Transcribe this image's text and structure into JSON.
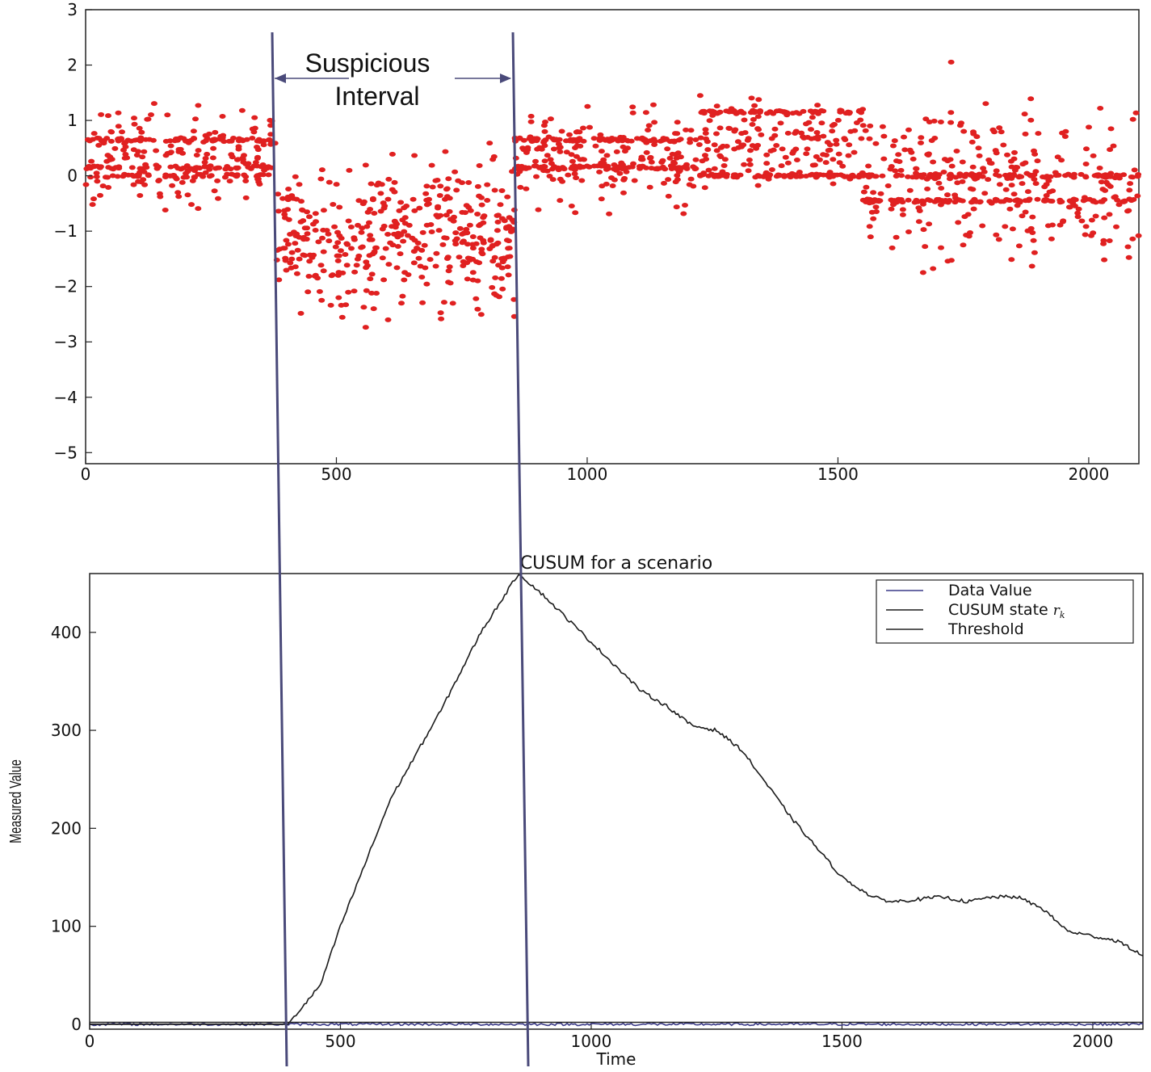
{
  "colors": {
    "scatter": "#e02020",
    "marker_line": "#4a4a7a",
    "cusum_line": "#1a1a1a",
    "data_line": "#3a3a88",
    "threshold_line": "#222222"
  },
  "annotation": {
    "line1": "Suspicious",
    "line2": "Interval",
    "markers_time": [
      380,
      855
    ]
  },
  "chart_data": [
    {
      "type": "scatter",
      "xlim": [
        0,
        2100
      ],
      "ylim": [
        -5.2,
        3
      ],
      "xticks": [
        0,
        500,
        1000,
        1500,
        2000
      ],
      "yticks": [
        3,
        2,
        1,
        0,
        -1,
        -2,
        -3,
        -4,
        -5
      ],
      "ytick_labels": [
        "3",
        "2",
        "1",
        "0",
        "−1",
        "−2",
        "−3",
        "−4",
        "−5"
      ],
      "segments": [
        {
          "x_start": 0,
          "x_end": 380,
          "bands": [
            0.65,
            0.15,
            0.0
          ],
          "spread": 0.65,
          "center": 0.35
        },
        {
          "x_start": 380,
          "x_end": 855,
          "bands": [],
          "spread": 0.9,
          "center": -1.1
        },
        {
          "x_start": 855,
          "x_end": 1220,
          "bands": [
            0.65,
            0.15
          ],
          "spread": 0.6,
          "center": 0.35
        },
        {
          "x_start": 1220,
          "x_end": 1550,
          "bands": [
            0.0,
            1.15
          ],
          "spread": 0.55,
          "center": 0.6
        },
        {
          "x_start": 1550,
          "x_end": 2100,
          "bands": [
            0.0,
            -0.45
          ],
          "spread": 1.0,
          "center": -0.1
        }
      ]
    },
    {
      "type": "line",
      "title": "CUSUM for a scenario",
      "xlabel": "Time",
      "ylabel": "Measured Value",
      "xlim": [
        0,
        2100
      ],
      "ylim": [
        -5,
        460
      ],
      "xticks": [
        0,
        500,
        1000,
        1500,
        2000
      ],
      "yticks": [
        0,
        100,
        200,
        300,
        400
      ],
      "legend_position": "top-right",
      "series": [
        {
          "name": "Data Value",
          "x": [
            0,
            2100
          ],
          "y": [
            0,
            0
          ]
        },
        {
          "name": "CUSUM state",
          "x": [
            0,
            395,
            420,
            460,
            500,
            600,
            700,
            780,
            855,
            900,
            1000,
            1100,
            1150,
            1200,
            1250,
            1300,
            1400,
            1500,
            1560,
            1600,
            1700,
            1750,
            1800,
            1850,
            1900,
            1950,
            2000,
            2050,
            2100
          ],
          "y": [
            0,
            0,
            15,
            40,
            100,
            230,
            320,
            400,
            460,
            440,
            390,
            340,
            325,
            305,
            300,
            280,
            210,
            150,
            130,
            125,
            130,
            125,
            130,
            130,
            118,
            95,
            90,
            85,
            70
          ]
        },
        {
          "name": "Threshold",
          "x": [
            0,
            2100
          ],
          "y": [
            2,
            2
          ]
        }
      ]
    }
  ]
}
